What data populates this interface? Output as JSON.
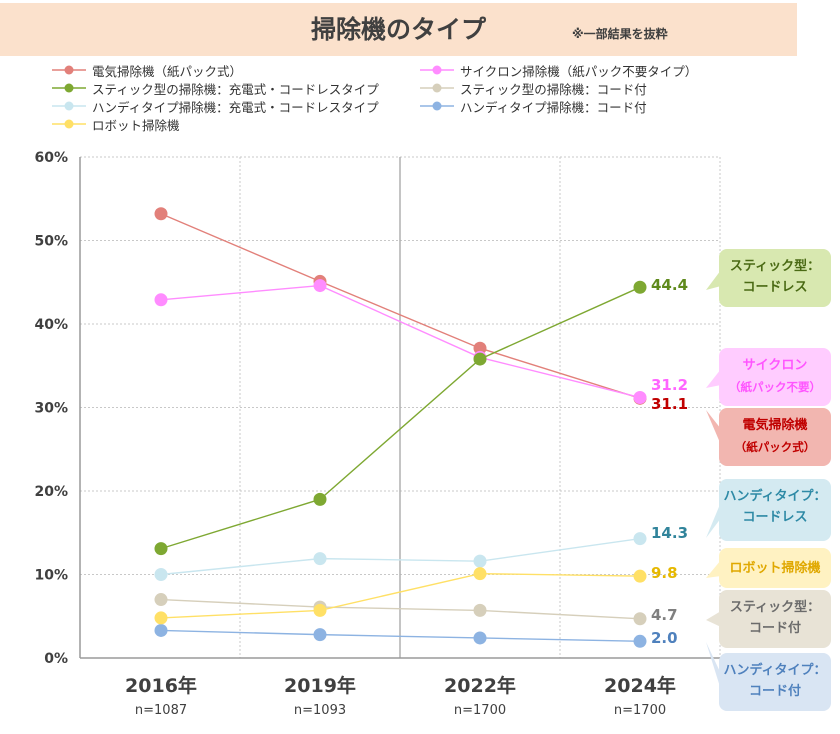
{
  "title": "掃除機のタイプ",
  "note": "※一部結果を抜粋",
  "chart_data": {
    "type": "line",
    "categories": [
      "2016年",
      "2019年",
      "2022年",
      "2024年"
    ],
    "sample_sizes": [
      "n=1087",
      "n=1093",
      "n=1700",
      "n=1700"
    ],
    "y_ticks": [
      "0%",
      "10%",
      "20%",
      "30%",
      "40%",
      "50%",
      "60%"
    ],
    "ylim": [
      0,
      60
    ],
    "grid": true,
    "legend_position": "top",
    "series": [
      {
        "name": "電気掃除機（紙パック式）",
        "color": "#e2807a",
        "values": [
          53.2,
          45.1,
          37.1,
          31.1
        ],
        "last_label": "31.1",
        "label_color": "#c00000"
      },
      {
        "name": "サイクロン掃除機（紙パック不要タイプ）",
        "color": "#ff8cff",
        "values": [
          42.9,
          44.6,
          36.0,
          31.2
        ],
        "last_label": "31.2",
        "label_color": "#ff66ff"
      },
      {
        "name": "スティック型の掃除機：充電式・コードレスタイプ",
        "color": "#7ea832",
        "values": [
          13.1,
          19.0,
          35.8,
          44.4
        ],
        "last_label": "44.4",
        "label_color": "#5f8a1c"
      },
      {
        "name": "スティック型の掃除機：コード付",
        "color": "#d6cfbb",
        "values": [
          7.0,
          6.1,
          5.7,
          4.7
        ],
        "last_label": "4.7",
        "label_color": "#7f7f7f"
      },
      {
        "name": "ハンディタイプ掃除機：充電式・コードレスタイプ",
        "color": "#c9e6ef",
        "values": [
          10.0,
          11.9,
          11.6,
          14.3
        ],
        "last_label": "14.3",
        "label_color": "#31849b"
      },
      {
        "name": "ハンディタイプ掃除機：コード付",
        "color": "#8db3e2",
        "values": [
          3.3,
          2.8,
          2.4,
          2.0
        ],
        "last_label": "2.0",
        "label_color": "#4f81bd"
      },
      {
        "name": "ロボット掃除機",
        "color": "#ffe066",
        "values": [
          4.8,
          5.7,
          10.1,
          9.8
        ],
        "last_label": "9.8",
        "label_color": "#e6b800"
      }
    ],
    "callouts": [
      {
        "line1": "スティック型：",
        "line2": "コードレス",
        "bg": "#d8e8b0",
        "text_color": "#4a6a14"
      },
      {
        "line1": "サイクロン",
        "line2": "（紙パック不要）",
        "bg": "#ffccff",
        "text_color": "#ff55ff"
      },
      {
        "line1": "電気掃除機",
        "line2": "（紙パック式）",
        "bg": "#f2b6b0",
        "text_color": "#c00000"
      },
      {
        "line1": "ハンディタイプ：",
        "line2": "コードレス",
        "bg": "#d4eaf1",
        "text_color": "#2e8aa6"
      },
      {
        "line1": "ロボット掃除機",
        "line2": "",
        "bg": "#fff2c2",
        "text_color": "#e0a800"
      },
      {
        "line1": "スティック型：",
        "line2": "コード付",
        "bg": "#e8e3d6",
        "text_color": "#6b6b6b"
      },
      {
        "line1": "ハンディタイプ：",
        "line2": "コード付",
        "bg": "#d9e5f3",
        "text_color": "#4f81bd"
      }
    ]
  }
}
